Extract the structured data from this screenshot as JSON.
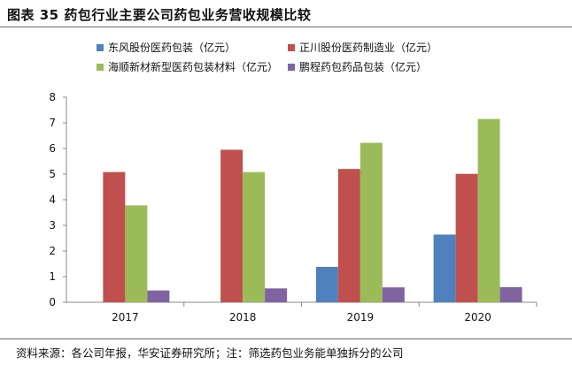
{
  "header": {
    "title": "图表  35 药包行业主要公司药包业务营收规模比较"
  },
  "footer": {
    "source": "资料来源：各公司年报，华安证券研究所；注：筛选药包业务能单独拆分的公司"
  },
  "chart_data": {
    "type": "bar",
    "title": "",
    "xlabel": "",
    "ylabel": "",
    "categories": [
      "2017",
      "2018",
      "2019",
      "2020"
    ],
    "ylim": [
      0,
      8
    ],
    "yticks": [
      0,
      1,
      2,
      3,
      4,
      5,
      6,
      7,
      8
    ],
    "grid": false,
    "legend_position": "top",
    "series": [
      {
        "name": "东风股份医药包装（亿元）",
        "color": "#4F81BD",
        "values": [
          null,
          null,
          1.38,
          2.64
        ]
      },
      {
        "name": "正川股份医药制造业（亿元）",
        "color": "#C0504D",
        "values": [
          5.08,
          5.95,
          5.2,
          5.01
        ]
      },
      {
        "name": "海顺新材新型医药包装材料（亿元）",
        "color": "#9BBB59",
        "values": [
          3.78,
          5.08,
          6.22,
          7.15
        ]
      },
      {
        "name": "鹏程药包药品包装（亿元）",
        "color": "#8064A2",
        "values": [
          0.46,
          0.54,
          0.58,
          0.59
        ]
      }
    ]
  }
}
